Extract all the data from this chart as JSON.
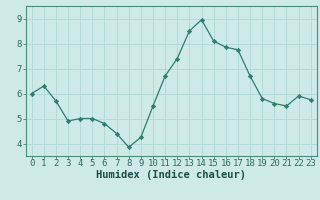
{
  "x": [
    0,
    1,
    2,
    3,
    4,
    5,
    6,
    7,
    8,
    9,
    10,
    11,
    12,
    13,
    14,
    15,
    16,
    17,
    18,
    19,
    20,
    21,
    22,
    23
  ],
  "y": [
    6.0,
    6.3,
    5.7,
    4.9,
    5.0,
    5.0,
    4.8,
    4.4,
    3.85,
    4.25,
    5.5,
    6.7,
    7.4,
    8.5,
    8.95,
    8.1,
    7.85,
    7.75,
    6.7,
    5.8,
    5.6,
    5.5,
    5.9,
    5.75
  ],
  "line_color": "#2e7d6e",
  "marker": "D",
  "marker_size": 2.2,
  "bg_color": "#ceeae7",
  "grid_color": "#b0d8d4",
  "xlabel": "Humidex (Indice chaleur)",
  "xlim": [
    -0.5,
    23.5
  ],
  "ylim": [
    3.5,
    9.5
  ],
  "yticks": [
    4,
    5,
    6,
    7,
    8,
    9
  ],
  "xticks": [
    0,
    1,
    2,
    3,
    4,
    5,
    6,
    7,
    8,
    9,
    10,
    11,
    12,
    13,
    14,
    15,
    16,
    17,
    18,
    19,
    20,
    21,
    22,
    23
  ],
  "tick_color": "#2e6b5e",
  "label_color": "#1a4f47",
  "axis_color": "#4a8a7a",
  "font_size": 6.5,
  "xlabel_fontsize": 7.5
}
